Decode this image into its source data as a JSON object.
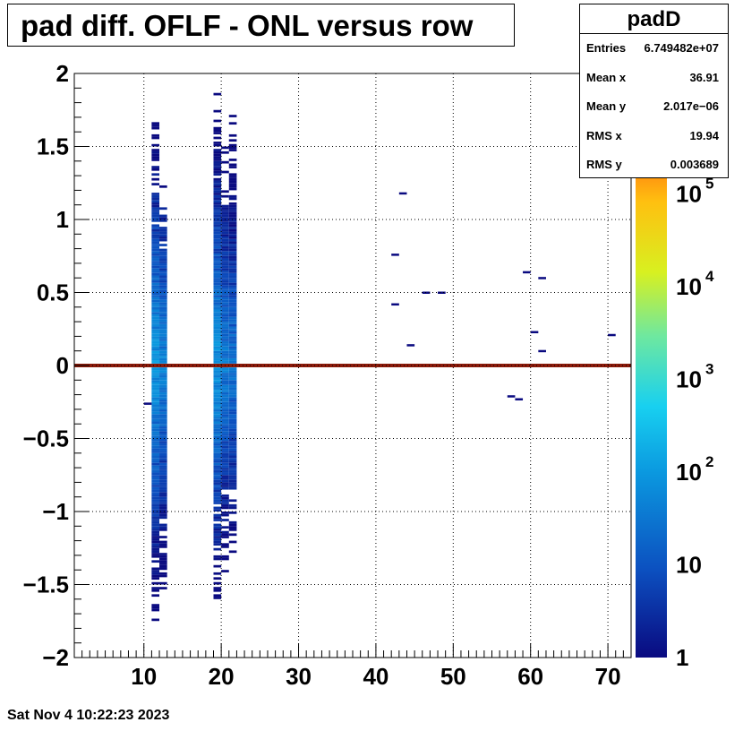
{
  "title": "pad diff. OFLF - ONL versus row",
  "stats": {
    "name": "padD",
    "rows": [
      {
        "key": "Entries",
        "value": "6.749482e+07"
      },
      {
        "key": "Mean x",
        "value": "36.91"
      },
      {
        "key": "Mean y",
        "value": "2.017e−06"
      },
      {
        "key": "RMS x",
        "value": "19.94"
      },
      {
        "key": "RMS y",
        "value": "0.003689"
      }
    ]
  },
  "timestamp": "Sat Nov  4 10:22:23 2023",
  "chart_data": {
    "type": "heatmap",
    "title": "pad diff. OFLF - ONL versus row",
    "xlabel": "",
    "ylabel": "",
    "xlim": [
      1,
      73
    ],
    "ylim": [
      -2,
      2
    ],
    "x_ticks": [
      10,
      20,
      30,
      40,
      50,
      60,
      70
    ],
    "y_ticks": [
      -2,
      -1.5,
      -1,
      -0.5,
      0,
      0.5,
      1,
      1.5,
      2
    ],
    "y_tick_labels": [
      "−2",
      "−1.5",
      "−1",
      "−0.5",
      "0",
      "0.5",
      "1",
      "1.5",
      "2"
    ],
    "grid": true,
    "colorbar": {
      "scale": "log",
      "range": [
        1,
        2000000
      ],
      "labels": [
        {
          "base": "1",
          "exp": "",
          "value": 1
        },
        {
          "base": "10",
          "exp": "",
          "value": 10
        },
        {
          "base": "10",
          "exp": "2",
          "value": 100
        },
        {
          "base": "10",
          "exp": "3",
          "value": 1000
        },
        {
          "base": "10",
          "exp": "4",
          "value": 10000
        },
        {
          "base": "10",
          "exp": "5",
          "value": 100000
        }
      ]
    },
    "zero_band": {
      "y": 0,
      "x_range": [
        1,
        73
      ],
      "count": 1000000
    },
    "column_bands": [
      {
        "x_range": [
          11,
          12
        ],
        "y_range": [
          -1.85,
          1.65
        ],
        "peak": 120
      },
      {
        "x_range": [
          12,
          13
        ],
        "y_range": [
          -1.6,
          1.25
        ],
        "peak": 60
      },
      {
        "x_range": [
          19,
          20
        ],
        "y_range": [
          -1.6,
          1.9
        ],
        "peak": 120
      },
      {
        "x_range": [
          20,
          21
        ],
        "y_range": [
          -1.45,
          1.5
        ],
        "peak": 50
      },
      {
        "x_range": [
          21,
          22
        ],
        "y_range": [
          -1.3,
          1.7
        ],
        "peak": 40
      }
    ],
    "isolated_bins": [
      {
        "x": 10.5,
        "y": -0.26,
        "count": 1
      },
      {
        "x": 43.5,
        "y": 1.18,
        "count": 1
      },
      {
        "x": 42.5,
        "y": 0.76,
        "count": 1
      },
      {
        "x": 42.5,
        "y": 0.42,
        "count": 1
      },
      {
        "x": 46.5,
        "y": 0.5,
        "count": 1
      },
      {
        "x": 48.5,
        "y": 0.5,
        "count": 1
      },
      {
        "x": 44.5,
        "y": 0.14,
        "count": 1
      },
      {
        "x": 59.5,
        "y": 0.64,
        "count": 1
      },
      {
        "x": 61.5,
        "y": 0.6,
        "count": 1
      },
      {
        "x": 60.5,
        "y": 0.23,
        "count": 1
      },
      {
        "x": 61.5,
        "y": 0.1,
        "count": 1
      },
      {
        "x": 57.5,
        "y": -0.21,
        "count": 1
      },
      {
        "x": 58.5,
        "y": -0.23,
        "count": 1
      },
      {
        "x": 70.5,
        "y": 0.21,
        "count": 1
      }
    ]
  }
}
